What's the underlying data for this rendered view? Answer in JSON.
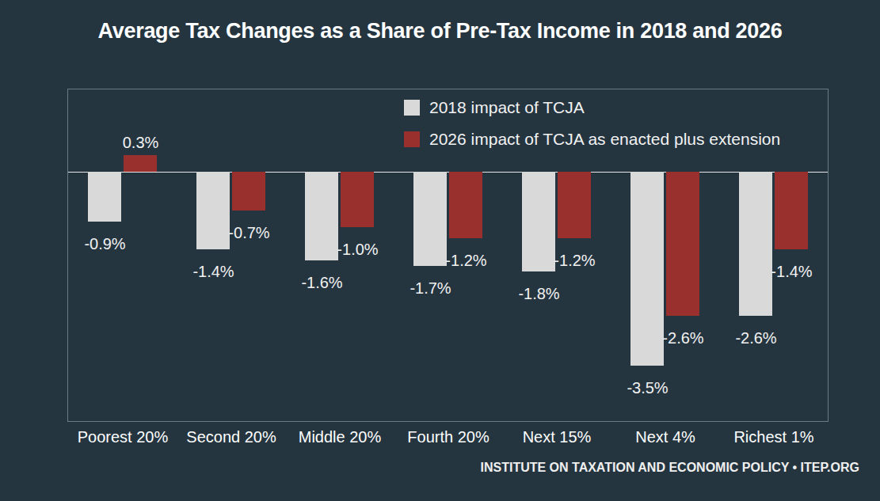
{
  "chart_data": {
    "type": "bar",
    "title": "Average Tax Changes as a Share of Pre-Tax Income in 2018 and 2026",
    "source": "INSTITUTE ON TAXATION AND ECONOMIC POLICY • ITEP.ORG",
    "categories": [
      "Poorest 20%",
      "Second 20%",
      "Middle 20%",
      "Fourth 20%",
      "Next 15%",
      "Next 4%",
      "Richest 1%"
    ],
    "series": [
      {
        "name": "2018 impact of TCJA",
        "color": "#d9d9d9",
        "values": [
          -0.9,
          -1.4,
          -1.6,
          -1.7,
          -1.8,
          -3.5,
          -2.6
        ],
        "value_labels": [
          "-0.9%",
          "-1.4%",
          "-1.6%",
          "-1.7%",
          "-1.8%",
          "-3.5%",
          "-2.6%"
        ]
      },
      {
        "name": "2026 impact of TCJA as enacted plus extension",
        "color": "#9a302e",
        "values": [
          0.3,
          -0.7,
          -1.0,
          -1.2,
          -1.2,
          -2.6,
          -1.4
        ],
        "value_labels": [
          "0.3%",
          "-0.7%",
          "-1.0%",
          "-1.2%",
          "-1.2%",
          "-2.6%",
          "-1.4%"
        ]
      }
    ],
    "ylim": [
      -4.5,
      1.5
    ],
    "yticks": [
      0
    ],
    "grid": true,
    "legend": "top-right",
    "data_labels": true,
    "tick_labels": "x"
  }
}
